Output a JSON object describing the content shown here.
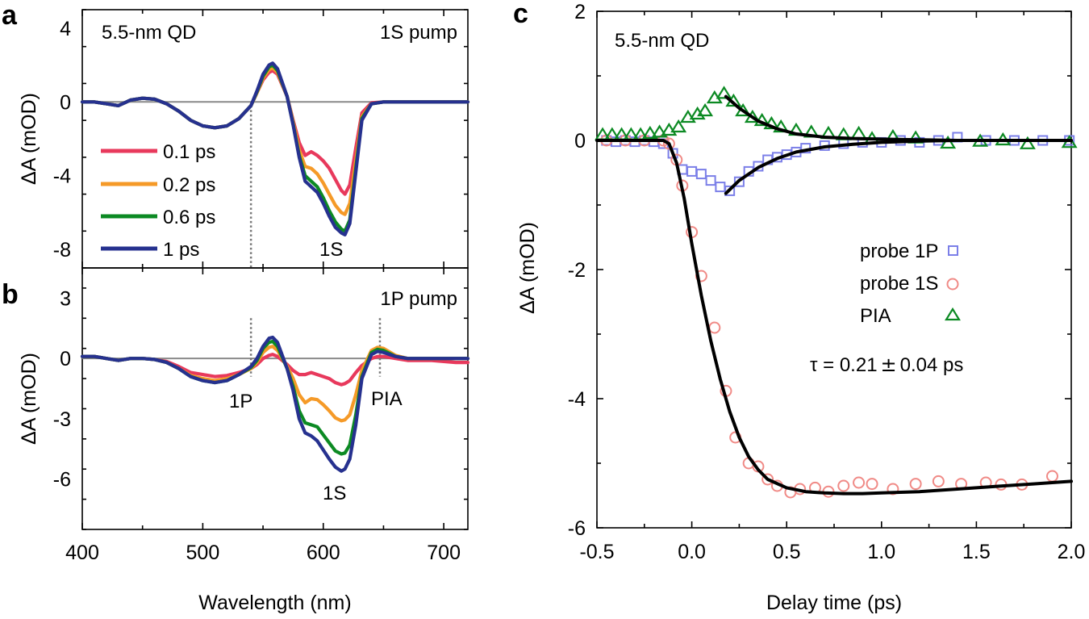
{
  "chart_data": [
    {
      "id": "a",
      "type": "line",
      "panel_label": "a",
      "sample_label": "5.5-nm QD",
      "pump_label": "1S pump",
      "peak_labels": [
        "1S"
      ],
      "xlabel": "Wavelength (nm)",
      "ylabel": "ΔA (mOD)",
      "xlim": [
        400,
        720
      ],
      "ylim": [
        -9,
        5
      ],
      "yticks": [
        -8,
        -4,
        0,
        4
      ],
      "ytick_labels": [
        "-8",
        "-4",
        "0",
        "4"
      ],
      "legend": [
        "0.1 ps",
        "0.2 ps",
        "0.6 ps",
        "1 ps"
      ],
      "x": [
        400,
        410,
        420,
        430,
        440,
        450,
        460,
        470,
        480,
        490,
        500,
        510,
        520,
        530,
        540,
        545,
        550,
        555,
        558,
        562,
        570,
        575,
        580,
        585,
        590,
        595,
        600,
        605,
        610,
        615,
        618,
        622,
        627,
        632,
        640,
        650,
        660,
        670,
        680,
        690,
        700,
        710,
        720
      ],
      "series": [
        {
          "name": "0.1 ps",
          "color": "#e8395c",
          "values": [
            0,
            0,
            -0.1,
            -0.2,
            0.1,
            0.2,
            0.15,
            -0.1,
            -0.5,
            -1.0,
            -1.3,
            -1.4,
            -1.3,
            -0.9,
            -0.2,
            0.5,
            1.2,
            1.6,
            1.7,
            1.5,
            0.3,
            -1.0,
            -2.2,
            -2.9,
            -2.7,
            -2.9,
            -3.2,
            -3.6,
            -4.2,
            -4.8,
            -5.0,
            -4.5,
            -2.5,
            -0.6,
            -0.05,
            0,
            0,
            0,
            0,
            0,
            0,
            0,
            0
          ]
        },
        {
          "name": "0.2 ps",
          "color": "#f59a28",
          "values": [
            0,
            0,
            -0.1,
            -0.2,
            0.1,
            0.2,
            0.15,
            -0.1,
            -0.5,
            -1.0,
            -1.3,
            -1.4,
            -1.3,
            -0.9,
            -0.2,
            0.5,
            1.3,
            1.75,
            1.85,
            1.6,
            0.3,
            -1.1,
            -2.6,
            -3.5,
            -3.6,
            -3.9,
            -4.4,
            -5.0,
            -5.6,
            -6.0,
            -6.1,
            -5.5,
            -3.2,
            -0.8,
            -0.1,
            0,
            0,
            0,
            0,
            0,
            0,
            0,
            0
          ]
        },
        {
          "name": "0.6 ps",
          "color": "#0c8a23",
          "values": [
            0,
            0,
            -0.1,
            -0.2,
            0.1,
            0.2,
            0.15,
            -0.1,
            -0.5,
            -1.0,
            -1.3,
            -1.4,
            -1.3,
            -0.9,
            -0.2,
            0.55,
            1.4,
            1.9,
            2.0,
            1.7,
            0.3,
            -1.2,
            -2.9,
            -4.0,
            -4.3,
            -4.6,
            -5.2,
            -5.9,
            -6.5,
            -6.9,
            -7.0,
            -6.4,
            -3.6,
            -0.9,
            -0.1,
            0,
            0,
            0,
            0,
            0,
            0,
            0,
            0
          ]
        },
        {
          "name": "1 ps",
          "color": "#26318f",
          "values": [
            0,
            0,
            -0.1,
            -0.2,
            0.1,
            0.2,
            0.15,
            -0.1,
            -0.5,
            -1.0,
            -1.3,
            -1.4,
            -1.3,
            -0.9,
            -0.2,
            0.6,
            1.5,
            2.0,
            2.1,
            1.8,
            0.3,
            -1.25,
            -3.0,
            -4.3,
            -4.6,
            -4.9,
            -5.5,
            -6.2,
            -6.8,
            -7.1,
            -7.2,
            -6.6,
            -3.8,
            -1.0,
            -0.1,
            0,
            0,
            0,
            0,
            0,
            0,
            0,
            0
          ]
        }
      ],
      "vline_x": [
        540
      ]
    },
    {
      "id": "b",
      "type": "line",
      "panel_label": "b",
      "pump_label": "1P pump",
      "peak_labels": [
        "1P",
        "1S",
        "PIA"
      ],
      "xlabel": "Wavelength (nm)",
      "ylabel": "ΔA (mOD)",
      "xlim": [
        400,
        720
      ],
      "ylim": [
        -8.5,
        4.5
      ],
      "xticks": [
        400,
        500,
        600,
        700
      ],
      "xtick_labels": [
        "400",
        "500",
        "600",
        "700"
      ],
      "yticks": [
        -6,
        -3,
        0,
        3
      ],
      "ytick_labels": [
        "-6",
        "-3",
        "0",
        "3"
      ],
      "x": [
        400,
        410,
        420,
        430,
        440,
        450,
        460,
        470,
        480,
        490,
        500,
        510,
        520,
        530,
        540,
        545,
        550,
        555,
        558,
        562,
        570,
        575,
        580,
        585,
        590,
        595,
        600,
        605,
        610,
        615,
        618,
        622,
        627,
        632,
        640,
        645,
        650,
        660,
        670,
        680,
        690,
        700,
        710,
        720
      ],
      "series": [
        {
          "name": "0.1 ps",
          "color": "#e8395c",
          "values": [
            0.1,
            0.1,
            0,
            -0.1,
            0,
            0,
            -0.05,
            -0.15,
            -0.4,
            -0.7,
            -0.8,
            -0.9,
            -0.85,
            -0.7,
            -0.5,
            -0.3,
            0,
            0.15,
            0.2,
            0.1,
            -0.3,
            -0.6,
            -0.8,
            -0.8,
            -0.7,
            -0.8,
            -0.9,
            -1.0,
            -1.2,
            -1.3,
            -1.25,
            -1.1,
            -0.7,
            -0.35,
            0,
            0.1,
            0.1,
            0,
            -0.1,
            -0.1,
            -0.1,
            -0.15,
            -0.2,
            -0.2
          ]
        },
        {
          "name": "0.2 ps",
          "color": "#f59a28",
          "values": [
            0.1,
            0.1,
            0,
            -0.1,
            0,
            0,
            -0.05,
            -0.2,
            -0.5,
            -0.85,
            -1.0,
            -1.1,
            -1.0,
            -0.8,
            -0.5,
            -0.2,
            0.3,
            0.55,
            0.6,
            0.4,
            -0.4,
            -1.0,
            -1.8,
            -2.2,
            -2.0,
            -2.05,
            -2.3,
            -2.6,
            -2.95,
            -3.1,
            -3.05,
            -2.8,
            -1.8,
            -0.6,
            0.4,
            0.55,
            0.5,
            0.15,
            0,
            0,
            0,
            0,
            0,
            0
          ]
        },
        {
          "name": "0.6 ps",
          "color": "#0c8a23",
          "values": [
            0.1,
            0.1,
            0,
            -0.1,
            0,
            0,
            -0.05,
            -0.2,
            -0.5,
            -0.9,
            -1.1,
            -1.2,
            -1.1,
            -0.8,
            -0.45,
            -0.1,
            0.5,
            0.8,
            0.85,
            0.6,
            -0.5,
            -1.4,
            -2.6,
            -3.2,
            -3.3,
            -3.4,
            -3.8,
            -4.2,
            -4.6,
            -4.75,
            -4.7,
            -4.3,
            -2.8,
            -0.9,
            0.3,
            0.45,
            0.4,
            0.1,
            0,
            0,
            0,
            0,
            0,
            0
          ]
        },
        {
          "name": "1 ps",
          "color": "#26318f",
          "values": [
            0.1,
            0.1,
            0,
            -0.1,
            0,
            0,
            -0.05,
            -0.2,
            -0.5,
            -0.9,
            -1.1,
            -1.2,
            -1.1,
            -0.8,
            -0.4,
            0,
            0.6,
            1.0,
            1.05,
            0.8,
            -0.5,
            -1.6,
            -3.0,
            -3.7,
            -3.85,
            -4.1,
            -4.55,
            -5.0,
            -5.4,
            -5.6,
            -5.5,
            -5.0,
            -3.3,
            -1.0,
            0.2,
            0.35,
            0.3,
            0.1,
            0,
            0,
            0,
            0,
            0,
            0
          ]
        }
      ],
      "vline_x": [
        540,
        647
      ]
    },
    {
      "id": "c",
      "type": "scatter",
      "panel_label": "c",
      "sample_label": "5.5-nm QD",
      "annotation": "τ = 0.21",
      "annotation_pm": "±",
      "annotation_err": "0.04 ps",
      "xlabel": "Delay time (ps)",
      "ylabel": "ΔA (mOD)",
      "xlim": [
        -0.5,
        2.0
      ],
      "ylim": [
        -6,
        2
      ],
      "xticks": [
        -0.5,
        0.0,
        0.5,
        1.0,
        1.5,
        2.0
      ],
      "xtick_labels": [
        "-0.5",
        "0.0",
        "0.5",
        "1.0",
        "1.5",
        "2.0"
      ],
      "yticks": [
        -6,
        -4,
        -2,
        0,
        2
      ],
      "ytick_labels": [
        "-6",
        "-4",
        "-2",
        "0",
        "2"
      ],
      "legend": [
        "probe 1P",
        "probe 1S",
        "PIA"
      ],
      "series": [
        {
          "name": "probe 1P",
          "marker": "square",
          "color": "#7b7fe8",
          "x": [
            -0.45,
            -0.4,
            -0.35,
            -0.3,
            -0.25,
            -0.2,
            -0.15,
            -0.1,
            -0.05,
            0.0,
            0.05,
            0.1,
            0.15,
            0.2,
            0.25,
            0.3,
            0.35,
            0.4,
            0.45,
            0.5,
            0.55,
            0.6,
            0.7,
            0.8,
            0.9,
            1.0,
            1.1,
            1.2,
            1.3,
            1.4,
            1.55,
            1.7,
            1.85,
            1.99
          ],
          "y": [
            0,
            -0.02,
            0,
            -0.02,
            0,
            -0.02,
            -0.05,
            -0.2,
            -0.45,
            -0.48,
            -0.52,
            -0.62,
            -0.72,
            -0.78,
            -0.64,
            -0.48,
            -0.4,
            -0.3,
            -0.26,
            -0.22,
            -0.18,
            -0.12,
            -0.08,
            -0.05,
            -0.03,
            -0.03,
            0,
            -0.03,
            0,
            0.05,
            0,
            0,
            0,
            0
          ]
        },
        {
          "name": "probe 1S",
          "marker": "circle",
          "color": "#f08a86",
          "x": [
            -0.45,
            -0.35,
            -0.25,
            -0.15,
            -0.12,
            -0.08,
            -0.05,
            0.0,
            0.05,
            0.12,
            0.18,
            0.23,
            0.3,
            0.35,
            0.4,
            0.45,
            0.52,
            0.57,
            0.65,
            0.72,
            0.8,
            0.88,
            0.95,
            1.06,
            1.18,
            1.3,
            1.42,
            1.55,
            1.63,
            1.74,
            1.9
          ],
          "y": [
            0,
            0,
            0,
            0,
            -0.05,
            -0.3,
            -0.7,
            -1.42,
            -2.1,
            -2.9,
            -3.88,
            -4.6,
            -5.0,
            -5.05,
            -5.25,
            -5.35,
            -5.45,
            -5.4,
            -5.38,
            -5.44,
            -5.35,
            -5.3,
            -5.32,
            -5.4,
            -5.32,
            -5.28,
            -5.32,
            -5.3,
            -5.33,
            -5.33,
            -5.2
          ]
        },
        {
          "name": "PIA",
          "marker": "triangle",
          "color": "#0c8a23",
          "x": [
            -0.47,
            -0.42,
            -0.37,
            -0.32,
            -0.27,
            -0.22,
            -0.17,
            -0.12,
            -0.07,
            -0.02,
            0.03,
            0.07,
            0.12,
            0.17,
            0.22,
            0.27,
            0.32,
            0.37,
            0.42,
            0.47,
            0.55,
            0.63,
            0.72,
            0.8,
            0.88,
            0.95,
            1.06,
            1.18,
            1.35,
            1.52,
            1.64,
            1.77,
            1.99
          ],
          "y": [
            0.08,
            0.08,
            0.08,
            0.08,
            0.08,
            0.1,
            0.12,
            0.15,
            0.2,
            0.35,
            0.4,
            0.45,
            0.65,
            0.72,
            0.6,
            0.45,
            0.35,
            0.3,
            0.25,
            0.2,
            0.15,
            0.12,
            0.1,
            0.08,
            0.1,
            0.02,
            0.05,
            0.03,
            -0.05,
            -0.02,
            0,
            -0.06,
            -0.04
          ]
        }
      ],
      "fits": [
        {
          "name": "fit 1S",
          "color": "#000000",
          "x": [
            -0.5,
            -0.15,
            -0.12,
            -0.08,
            -0.04,
            0.0,
            0.05,
            0.1,
            0.15,
            0.2,
            0.25,
            0.3,
            0.35,
            0.4,
            0.5,
            0.6,
            0.7,
            0.8,
            0.9,
            1.0,
            1.2,
            1.4,
            1.6,
            1.8,
            2.0
          ],
          "y": [
            0,
            0,
            -0.05,
            -0.35,
            -0.9,
            -1.6,
            -2.4,
            -3.1,
            -3.7,
            -4.2,
            -4.6,
            -4.9,
            -5.1,
            -5.25,
            -5.38,
            -5.44,
            -5.46,
            -5.47,
            -5.47,
            -5.46,
            -5.44,
            -5.4,
            -5.36,
            -5.32,
            -5.28
          ]
        },
        {
          "name": "fit 1P",
          "color": "#000000",
          "x": [
            0.18,
            0.25,
            0.35,
            0.45,
            0.55,
            0.7,
            0.85,
            1.0,
            1.2,
            1.4,
            1.6,
            2.0
          ],
          "y": [
            -0.82,
            -0.62,
            -0.42,
            -0.28,
            -0.18,
            -0.1,
            -0.06,
            -0.03,
            -0.01,
            0,
            0,
            0
          ]
        },
        {
          "name": "fit PIA",
          "color": "#000000",
          "x": [
            0.18,
            0.25,
            0.35,
            0.45,
            0.55,
            0.7,
            0.85,
            1.0,
            1.2,
            1.4,
            1.6,
            2.0
          ],
          "y": [
            0.68,
            0.5,
            0.3,
            0.18,
            0.1,
            0.05,
            0.03,
            0.02,
            0.01,
            0,
            0,
            0
          ]
        }
      ]
    }
  ]
}
